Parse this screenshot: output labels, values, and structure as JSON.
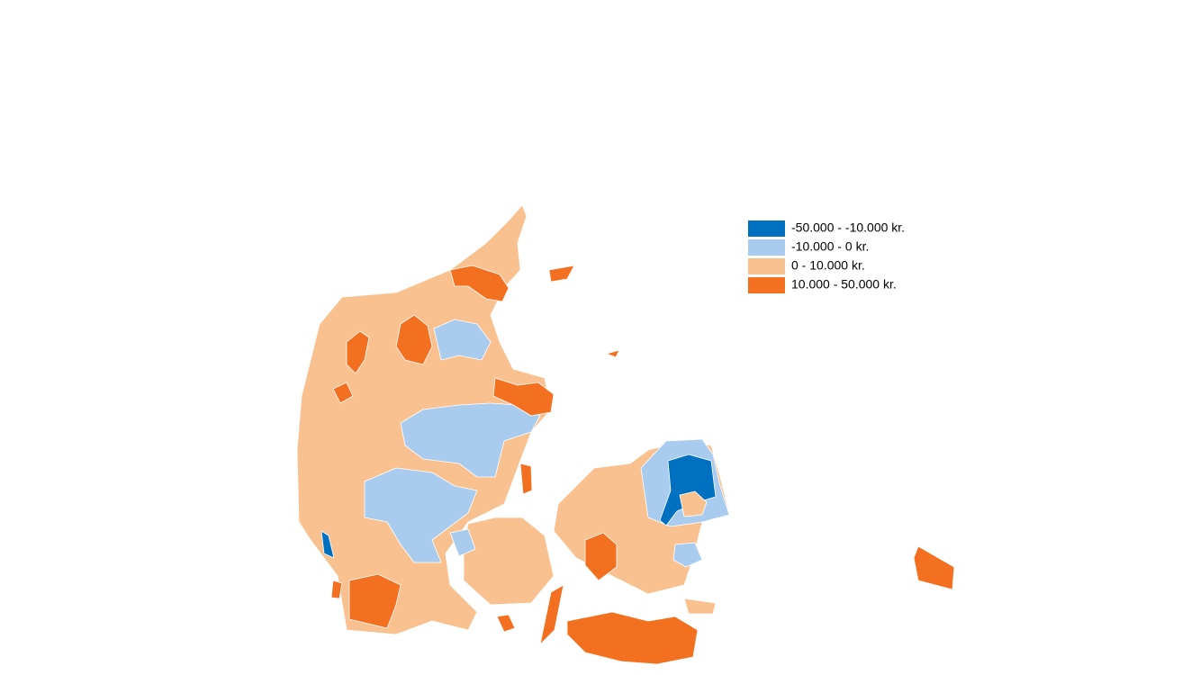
{
  "legend": {
    "items": [
      {
        "label": "-50.000 - -10.000 kr.",
        "color": "#0070c0"
      },
      {
        "label": "-10.000 - 0 kr.",
        "color": "#a9cbee"
      },
      {
        "label": "0 - 10.000 kr.",
        "color": "#f9c18f"
      },
      {
        "label": "10.000 - 50.000 kr.",
        "color": "#f37021"
      }
    ]
  }
}
